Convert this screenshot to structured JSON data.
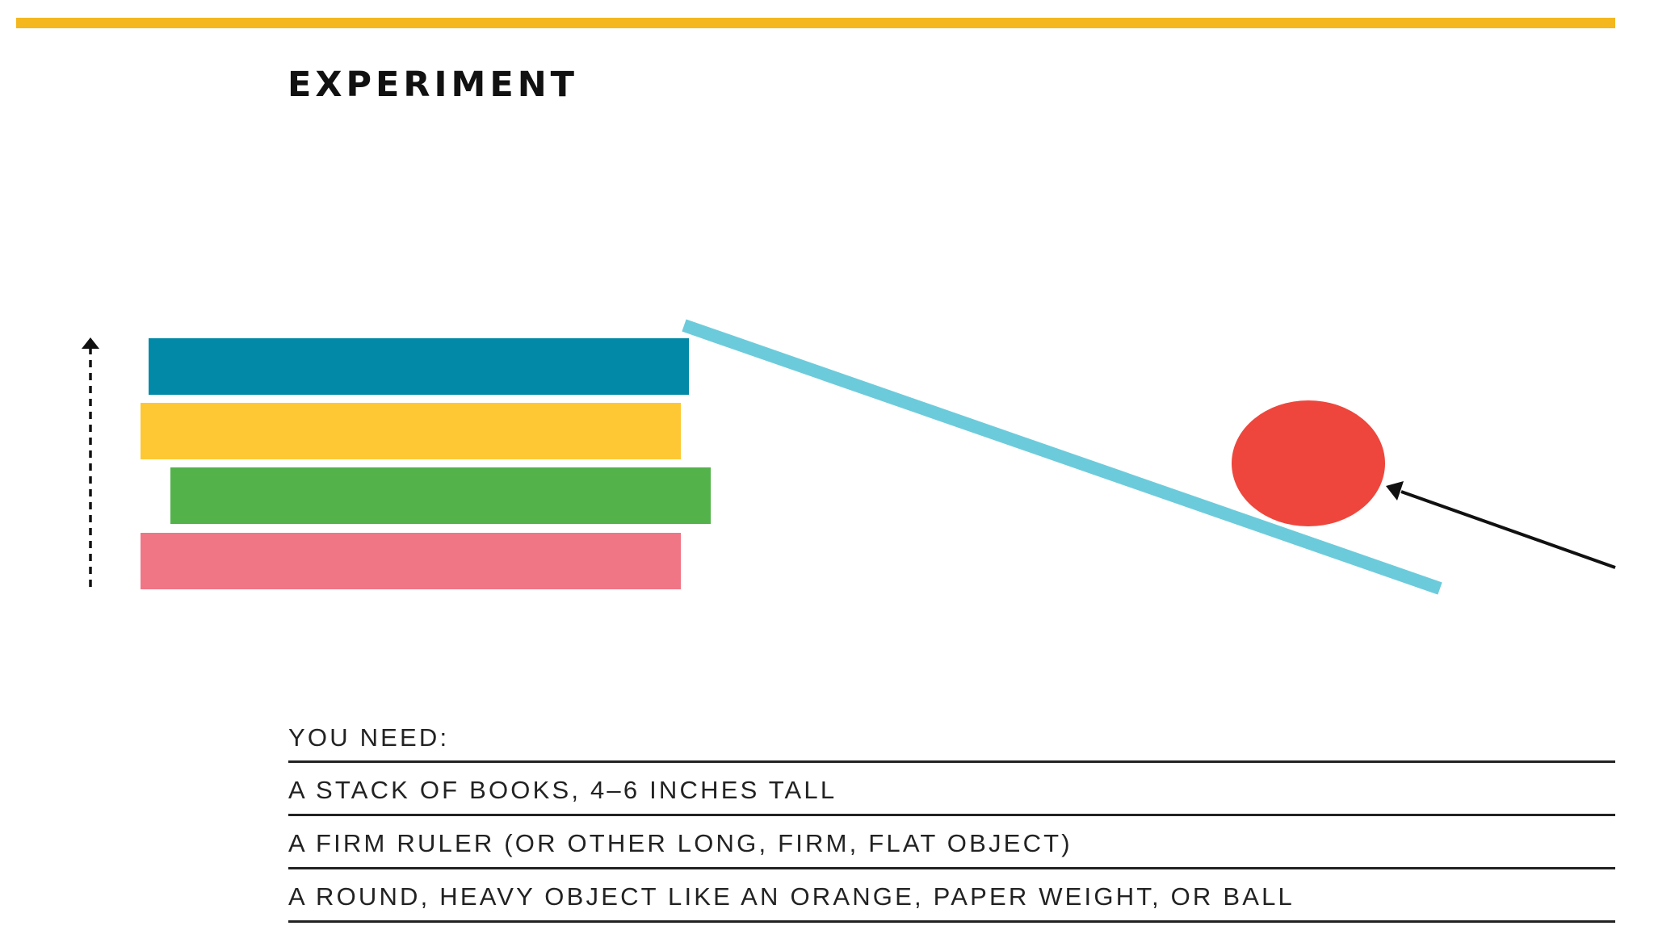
{
  "header": {
    "accent_color": "#f4b81e",
    "title": "EXPERIMENT"
  },
  "diagram": {
    "books": [
      {
        "color": "#0289a8"
      },
      {
        "color": "#fdc834"
      },
      {
        "color": "#54b24b"
      },
      {
        "color": "#f07585"
      }
    ],
    "ruler": {
      "color": "#6ccbdb"
    },
    "ball": {
      "color": "#ee463c"
    },
    "arrows": [
      "height-arrow-icon",
      "ball-pointer-arrow-icon"
    ]
  },
  "you_need": {
    "heading": "YOU NEED:",
    "items": [
      "A STACK OF BOOKS, 4–6 INCHES TALL",
      "A FIRM RULER (OR OTHER LONG, FIRM, FLAT OBJECT)",
      "A ROUND, HEAVY OBJECT LIKE AN ORANGE, PAPER WEIGHT, OR BALL"
    ]
  }
}
